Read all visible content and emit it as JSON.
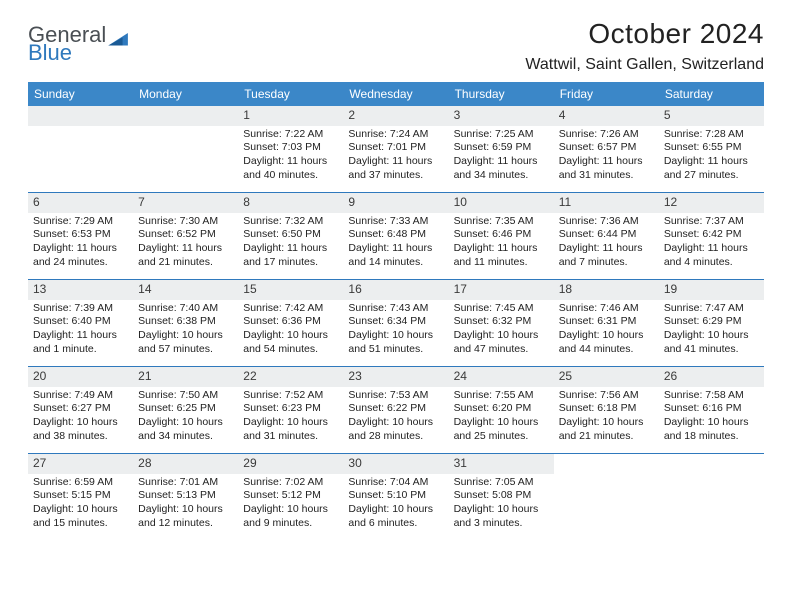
{
  "brand": {
    "name1": "General",
    "name2": "Blue",
    "color_gray": "#54595e",
    "color_blue": "#2f79bd"
  },
  "header": {
    "title": "October 2024",
    "location": "Wattwil, Saint Gallen, Switzerland"
  },
  "colors": {
    "weekday_bg": "#3b87c8",
    "weekday_text": "#ffffff",
    "divider": "#2f79bd",
    "daynum_bg": "#eceeef",
    "text": "#222222",
    "page_bg": "#ffffff"
  },
  "weekdays": [
    "Sunday",
    "Monday",
    "Tuesday",
    "Wednesday",
    "Thursday",
    "Friday",
    "Saturday"
  ],
  "weeks": [
    [
      null,
      null,
      {
        "n": "1",
        "sunrise": "7:22 AM",
        "sunset": "7:03 PM",
        "daylight": "11 hours and 40 minutes."
      },
      {
        "n": "2",
        "sunrise": "7:24 AM",
        "sunset": "7:01 PM",
        "daylight": "11 hours and 37 minutes."
      },
      {
        "n": "3",
        "sunrise": "7:25 AM",
        "sunset": "6:59 PM",
        "daylight": "11 hours and 34 minutes."
      },
      {
        "n": "4",
        "sunrise": "7:26 AM",
        "sunset": "6:57 PM",
        "daylight": "11 hours and 31 minutes."
      },
      {
        "n": "5",
        "sunrise": "7:28 AM",
        "sunset": "6:55 PM",
        "daylight": "11 hours and 27 minutes."
      }
    ],
    [
      {
        "n": "6",
        "sunrise": "7:29 AM",
        "sunset": "6:53 PM",
        "daylight": "11 hours and 24 minutes."
      },
      {
        "n": "7",
        "sunrise": "7:30 AM",
        "sunset": "6:52 PM",
        "daylight": "11 hours and 21 minutes."
      },
      {
        "n": "8",
        "sunrise": "7:32 AM",
        "sunset": "6:50 PM",
        "daylight": "11 hours and 17 minutes."
      },
      {
        "n": "9",
        "sunrise": "7:33 AM",
        "sunset": "6:48 PM",
        "daylight": "11 hours and 14 minutes."
      },
      {
        "n": "10",
        "sunrise": "7:35 AM",
        "sunset": "6:46 PM",
        "daylight": "11 hours and 11 minutes."
      },
      {
        "n": "11",
        "sunrise": "7:36 AM",
        "sunset": "6:44 PM",
        "daylight": "11 hours and 7 minutes."
      },
      {
        "n": "12",
        "sunrise": "7:37 AM",
        "sunset": "6:42 PM",
        "daylight": "11 hours and 4 minutes."
      }
    ],
    [
      {
        "n": "13",
        "sunrise": "7:39 AM",
        "sunset": "6:40 PM",
        "daylight": "11 hours and 1 minute."
      },
      {
        "n": "14",
        "sunrise": "7:40 AM",
        "sunset": "6:38 PM",
        "daylight": "10 hours and 57 minutes."
      },
      {
        "n": "15",
        "sunrise": "7:42 AM",
        "sunset": "6:36 PM",
        "daylight": "10 hours and 54 minutes."
      },
      {
        "n": "16",
        "sunrise": "7:43 AM",
        "sunset": "6:34 PM",
        "daylight": "10 hours and 51 minutes."
      },
      {
        "n": "17",
        "sunrise": "7:45 AM",
        "sunset": "6:32 PM",
        "daylight": "10 hours and 47 minutes."
      },
      {
        "n": "18",
        "sunrise": "7:46 AM",
        "sunset": "6:31 PM",
        "daylight": "10 hours and 44 minutes."
      },
      {
        "n": "19",
        "sunrise": "7:47 AM",
        "sunset": "6:29 PM",
        "daylight": "10 hours and 41 minutes."
      }
    ],
    [
      {
        "n": "20",
        "sunrise": "7:49 AM",
        "sunset": "6:27 PM",
        "daylight": "10 hours and 38 minutes."
      },
      {
        "n": "21",
        "sunrise": "7:50 AM",
        "sunset": "6:25 PM",
        "daylight": "10 hours and 34 minutes."
      },
      {
        "n": "22",
        "sunrise": "7:52 AM",
        "sunset": "6:23 PM",
        "daylight": "10 hours and 31 minutes."
      },
      {
        "n": "23",
        "sunrise": "7:53 AM",
        "sunset": "6:22 PM",
        "daylight": "10 hours and 28 minutes."
      },
      {
        "n": "24",
        "sunrise": "7:55 AM",
        "sunset": "6:20 PM",
        "daylight": "10 hours and 25 minutes."
      },
      {
        "n": "25",
        "sunrise": "7:56 AM",
        "sunset": "6:18 PM",
        "daylight": "10 hours and 21 minutes."
      },
      {
        "n": "26",
        "sunrise": "7:58 AM",
        "sunset": "6:16 PM",
        "daylight": "10 hours and 18 minutes."
      }
    ],
    [
      {
        "n": "27",
        "sunrise": "6:59 AM",
        "sunset": "5:15 PM",
        "daylight": "10 hours and 15 minutes."
      },
      {
        "n": "28",
        "sunrise": "7:01 AM",
        "sunset": "5:13 PM",
        "daylight": "10 hours and 12 minutes."
      },
      {
        "n": "29",
        "sunrise": "7:02 AM",
        "sunset": "5:12 PM",
        "daylight": "10 hours and 9 minutes."
      },
      {
        "n": "30",
        "sunrise": "7:04 AM",
        "sunset": "5:10 PM",
        "daylight": "10 hours and 6 minutes."
      },
      {
        "n": "31",
        "sunrise": "7:05 AM",
        "sunset": "5:08 PM",
        "daylight": "10 hours and 3 minutes."
      },
      null,
      null
    ]
  ],
  "labels": {
    "sunrise": "Sunrise:",
    "sunset": "Sunset:",
    "daylight": "Daylight:"
  }
}
